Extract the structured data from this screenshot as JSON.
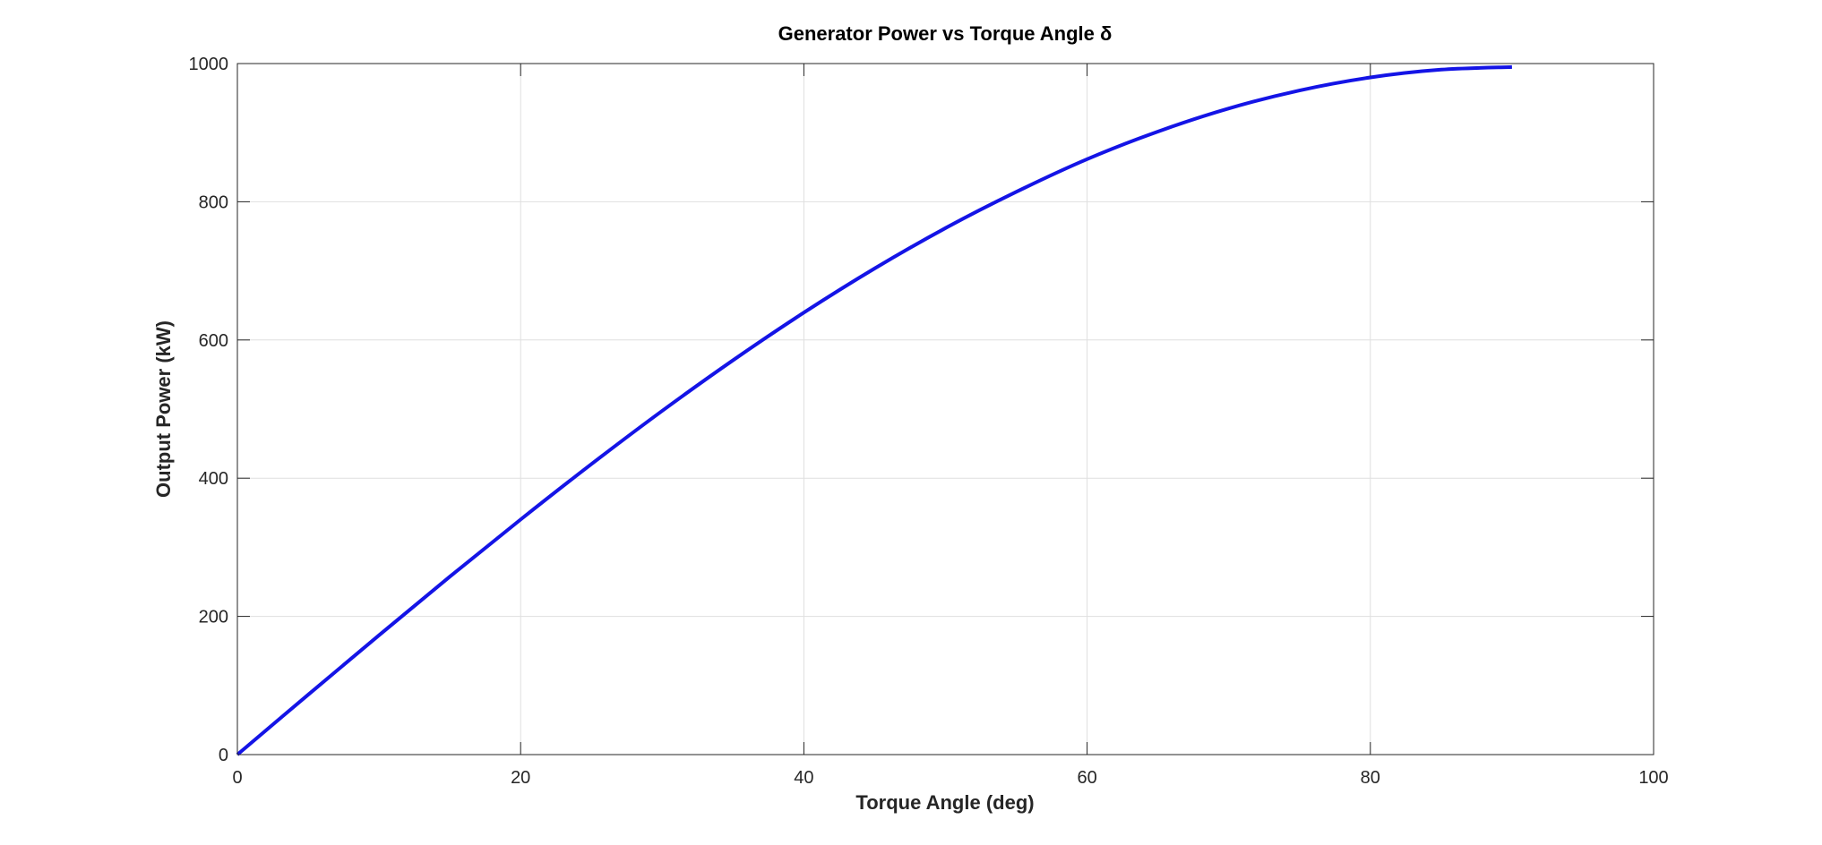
{
  "chart_data": {
    "type": "line",
    "title": "Generator Power vs Torque Angle δ",
    "xlabel": "Torque Angle (deg)",
    "ylabel": "Output Power (kW)",
    "xlim": [
      0,
      100
    ],
    "ylim": [
      0,
      1000
    ],
    "xticks": [
      0,
      20,
      40,
      60,
      80,
      100
    ],
    "yticks": [
      0,
      200,
      400,
      600,
      800,
      1000
    ],
    "grid": true,
    "series": [
      {
        "color": "#1414e6",
        "x": [
          0,
          5,
          10,
          15,
          20,
          25,
          30,
          35,
          40,
          45,
          50,
          55,
          60,
          65,
          70,
          75,
          80,
          85,
          90
        ],
        "y": [
          0,
          86.7,
          172.7,
          257.5,
          340.2,
          420.4,
          497.5,
          570.7,
          639.6,
          703.5,
          761.9,
          814.3,
          861.6,
          901.6,
          935.0,
          961.1,
          979.9,
          991.2,
          995.0
        ]
      }
    ]
  }
}
